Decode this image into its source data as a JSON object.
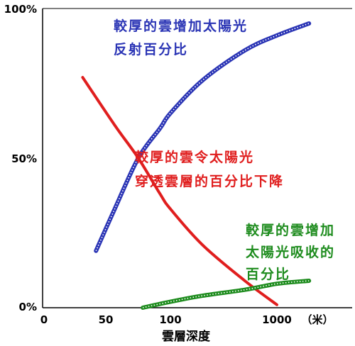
{
  "chart_data": {
    "type": "line",
    "x_scale": "log",
    "xlabel": "雲層深度",
    "x_unit": "（米）",
    "x_ticks": [
      "0",
      "50",
      "100",
      "1000"
    ],
    "y_ticks": [
      "100%",
      "50%",
      "0%"
    ],
    "ylim": [
      0,
      100
    ],
    "grid": false,
    "series": [
      {
        "color": "#2b35b5",
        "style": "dotted",
        "x": [
          20,
          30,
          50,
          80,
          100,
          200,
          500,
          1000,
          2000
        ],
        "y": [
          19,
          33,
          50,
          60,
          65,
          76,
          86,
          91,
          95
        ]
      },
      {
        "color": "#e01e1e",
        "style": "solid",
        "x": [
          15,
          30,
          50,
          80,
          100,
          200,
          500,
          1000
        ],
        "y": [
          77,
          61,
          50,
          38,
          33,
          21,
          9,
          1
        ]
      },
      {
        "color": "#1e8c1e",
        "style": "dotted",
        "x": [
          55,
          100,
          200,
          500,
          1000,
          2000
        ],
        "y": [
          0,
          2,
          4,
          6,
          8,
          9
        ]
      }
    ],
    "annotations": [
      {
        "lines": [
          "較厚的雲增加太陽光",
          "反射百分比"
        ],
        "color": "#2b35b5"
      },
      {
        "lines": [
          "較厚的雲令太陽光",
          "穿透雲層的百分比下降"
        ],
        "color": "#e01e1e"
      },
      {
        "lines": [
          "較厚的雲增加",
          "太陽光吸收的",
          "百分比"
        ],
        "color": "#1e8c1e"
      }
    ]
  }
}
